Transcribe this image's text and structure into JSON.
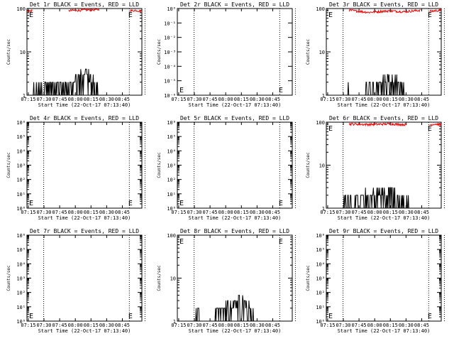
{
  "figure": {
    "colors": {
      "background": "#ffffff",
      "events": "#000000",
      "lld": "#ff0000"
    },
    "chart_data": [
      {
        "type": "line",
        "title": "Det 1r BLACK = Events, RED = LLD",
        "xlabel": "Start Time (22-Oct-17 07:13:40)",
        "ylabel": "Counts/sec",
        "yscale": "log",
        "ylim": [
          1,
          100
        ],
        "yticks": [
          "1",
          "10",
          "100"
        ],
        "xticks": [
          "07:15",
          "07:30",
          "07:45",
          "08:00",
          "08:15",
          "08:30",
          "08:45"
        ],
        "xlim_minutes": [
          0,
          110
        ],
        "vlines_minutes": [
          16,
          98,
          113
        ],
        "markers": [
          {
            "label": "E",
            "x": 0
          },
          {
            "label": "E",
            "x": 97
          }
        ],
        "events_profile": [
          [
            0,
            1
          ],
          [
            15,
            2
          ],
          [
            40,
            2
          ],
          [
            48,
            3
          ],
          [
            56,
            4
          ],
          [
            62,
            3
          ],
          [
            66,
            2
          ],
          [
            70,
            1
          ]
        ],
        "lld_profile": [
          [
            0,
            90
          ],
          [
            17,
            95
          ],
          [
            30,
            92
          ],
          [
            50,
            95
          ],
          [
            72,
            100
          ],
          [
            99,
            92
          ],
          [
            104,
            95
          ],
          [
            110,
            90
          ]
        ],
        "lld_spans": [
          [
            0,
            5
          ],
          [
            40,
            69
          ],
          [
            99,
            110
          ]
        ]
      },
      {
        "type": "line",
        "title": "Det 2r BLACK = Events, RED = LLD",
        "xlabel": "Start Time (22-Oct-17 07:13:40)",
        "ylabel": "Counts/sec",
        "yscale": "log",
        "ylim": [
          1e-06,
          1
        ],
        "yticks": [
          "10⁰",
          "10⁻¹",
          "10⁻²",
          "10⁻³",
          "10⁻⁴",
          "10⁻⁵",
          "10⁻⁶"
        ],
        "xticks": [
          "07:15",
          "07:30",
          "07:45",
          "08:00",
          "08:15",
          "08:30",
          "08:45"
        ],
        "xlim_minutes": [
          0,
          110
        ],
        "vlines_minutes": [
          16,
          98,
          113
        ],
        "markers": [
          {
            "label": "E",
            "x": 0
          },
          {
            "label": "E",
            "x": 97
          }
        ],
        "events_profile": [],
        "lld_profile": [],
        "lld_spans": []
      },
      {
        "type": "line",
        "title": "Det 3r BLACK = Events, RED = LLD",
        "xlabel": "Start Time (22-Oct-17 07:13:40)",
        "ylabel": "Counts/sec",
        "yscale": "log",
        "ylim": [
          1,
          100
        ],
        "yticks": [
          "1",
          "10",
          "100"
        ],
        "xticks": [
          "07:15",
          "07:30",
          "07:45",
          "08:00",
          "08:15",
          "08:30",
          "08:45"
        ],
        "xlim_minutes": [
          0,
          110
        ],
        "vlines_minutes": [
          16,
          98,
          113
        ],
        "markers": [
          {
            "label": "E",
            "x": 0
          },
          {
            "label": "E",
            "x": 97
          }
        ],
        "events_profile": [
          [
            15,
            1
          ],
          [
            18,
            2
          ],
          [
            25,
            1
          ],
          [
            45,
            2
          ],
          [
            62,
            3
          ],
          [
            70,
            2
          ],
          [
            78,
            1
          ],
          [
            92,
            1
          ]
        ],
        "lld_profile": [
          [
            0,
            88
          ],
          [
            22,
            95
          ],
          [
            40,
            85
          ],
          [
            60,
            92
          ],
          [
            75,
            88
          ],
          [
            90,
            95
          ],
          [
            99,
            90
          ],
          [
            110,
            95
          ]
        ],
        "lld_spans": [
          [
            22,
            90
          ],
          [
            99,
            110
          ]
        ]
      },
      {
        "type": "line",
        "title": "Det 4r BLACK = Events, RED = LLD",
        "xlabel": "Start Time (22-Oct-17 07:13:40)",
        "ylabel": "Counts/sec",
        "yscale": "log",
        "ylim": [
          1,
          1000000
        ],
        "yticks": [
          "10⁰",
          "10¹",
          "10²",
          "10³",
          "10⁴",
          "10⁵",
          "10⁶"
        ],
        "xticks": [
          "07:15",
          "07:30",
          "07:45",
          "08:00",
          "08:15",
          "08:30",
          "08:45"
        ],
        "xlim_minutes": [
          0,
          110
        ],
        "vlines_minutes": [
          16,
          98,
          113
        ],
        "markers": [
          {
            "label": "E",
            "x": 0
          },
          {
            "label": "E",
            "x": 97
          }
        ],
        "events_profile": [],
        "lld_profile": [],
        "lld_spans": []
      },
      {
        "type": "line",
        "title": "Det 5r BLACK = Events, RED = LLD",
        "xlabel": "Start Time (22-Oct-17 07:13:40)",
        "ylabel": "Counts/sec",
        "yscale": "log",
        "ylim": [
          1,
          1000000
        ],
        "yticks": [
          "10⁰",
          "10¹",
          "10²",
          "10³",
          "10⁴",
          "10⁵",
          "10⁶"
        ],
        "xticks": [
          "07:15",
          "07:30",
          "07:45",
          "08:00",
          "08:15",
          "08:30",
          "08:45"
        ],
        "xlim_minutes": [
          0,
          110
        ],
        "vlines_minutes": [
          16,
          98,
          113
        ],
        "markers": [
          {
            "label": "E",
            "x": 0
          },
          {
            "label": "E",
            "x": 97
          }
        ],
        "events_profile": [],
        "lld_profile": [],
        "lld_spans": []
      },
      {
        "type": "line",
        "title": "Det 6r BLACK = Events, RED = LLD",
        "xlabel": "Start Time (22-Oct-17 07:13:40)",
        "ylabel": "Counts/sec",
        "yscale": "log",
        "ylim": [
          1,
          100
        ],
        "yticks": [
          "1",
          "10",
          "100"
        ],
        "xticks": [
          "07:15",
          "07:30",
          "07:45",
          "08:00",
          "08:15",
          "08:30",
          "08:45"
        ],
        "xlim_minutes": [
          0,
          110
        ],
        "vlines_minutes": [
          16,
          98,
          113
        ],
        "markers": [
          {
            "label": "E",
            "x": 0
          },
          {
            "label": "E",
            "x": 97
          }
        ],
        "events_profile": [
          [
            15,
            1
          ],
          [
            18,
            2
          ],
          [
            30,
            2
          ],
          [
            60,
            3
          ],
          [
            70,
            2
          ],
          [
            85,
            1
          ],
          [
            92,
            1
          ]
        ],
        "lld_profile": [
          [
            0,
            88
          ],
          [
            22,
            95
          ],
          [
            40,
            92
          ],
          [
            60,
            95
          ],
          [
            75,
            92
          ],
          [
            99,
            90
          ],
          [
            104,
            95
          ],
          [
            110,
            92
          ]
        ],
        "lld_spans": [
          [
            22,
            77
          ],
          [
            99,
            110
          ]
        ]
      },
      {
        "type": "line",
        "title": "Det 7r BLACK = Events, RED = LLD",
        "xlabel": "Start Time (22-Oct-17 07:13:40)",
        "ylabel": "Counts/sec",
        "yscale": "log",
        "ylim": [
          1,
          1000000
        ],
        "yticks": [
          "10⁰",
          "10¹",
          "10²",
          "10³",
          "10⁴",
          "10⁵",
          "10⁶"
        ],
        "xticks": [
          "07:15",
          "07:30",
          "07:45",
          "08:00",
          "08:15",
          "08:30",
          "08:45"
        ],
        "xlim_minutes": [
          0,
          110
        ],
        "vlines_minutes": [
          16,
          98,
          113
        ],
        "markers": [
          {
            "label": "E",
            "x": 0
          },
          {
            "label": "E",
            "x": 97
          }
        ],
        "events_profile": [],
        "lld_profile": [],
        "lld_spans": []
      },
      {
        "type": "line",
        "title": "Det 8r BLACK = Events, RED = LLD",
        "xlabel": "Start Time (22-Oct-17 07:13:40)",
        "ylabel": "Counts/sec",
        "yscale": "log",
        "ylim": [
          1,
          100
        ],
        "yticks": [
          "1",
          "10",
          "100"
        ],
        "xticks": [
          "07:15",
          "07:30",
          "07:45",
          "08:00",
          "08:15",
          "08:30",
          "08:45"
        ],
        "xlim_minutes": [
          0,
          110
        ],
        "vlines_minutes": [
          16,
          98,
          113
        ],
        "markers": [
          {
            "label": "E",
            "x": 0
          },
          {
            "label": "E",
            "x": 97
          }
        ],
        "events_profile": [
          [
            15,
            1
          ],
          [
            20,
            2
          ],
          [
            30,
            1
          ],
          [
            40,
            2
          ],
          [
            55,
            3
          ],
          [
            63,
            4
          ],
          [
            68,
            3
          ],
          [
            72,
            2
          ],
          [
            78,
            1
          ]
        ],
        "lld_profile": [],
        "lld_spans": []
      },
      {
        "type": "line",
        "title": "Det 9r BLACK = Events, RED = LLD",
        "xlabel": "Start Time (22-Oct-17 07:13:40)",
        "ylabel": "Counts/sec",
        "yscale": "log",
        "ylim": [
          1,
          1000000
        ],
        "yticks": [
          "10⁰",
          "10¹",
          "10²",
          "10³",
          "10⁴",
          "10⁵",
          "10⁶"
        ],
        "xticks": [
          "07:15",
          "07:30",
          "07:45",
          "08:00",
          "08:15",
          "08:30",
          "08:45"
        ],
        "xlim_minutes": [
          0,
          110
        ],
        "vlines_minutes": [
          16,
          98,
          113
        ],
        "markers": [
          {
            "label": "E",
            "x": 0
          },
          {
            "label": "E",
            "x": 97
          }
        ],
        "events_profile": [],
        "lld_profile": [],
        "lld_spans": []
      }
    ]
  }
}
